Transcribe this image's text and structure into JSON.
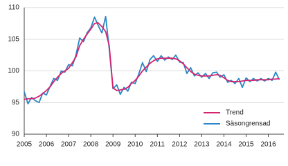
{
  "chart_data": {
    "type": "line",
    "x": [
      2005,
      2005.17,
      2005.33,
      2005.5,
      2005.67,
      2005.83,
      2006,
      2006.17,
      2006.33,
      2006.5,
      2006.67,
      2006.83,
      2007,
      2007.17,
      2007.33,
      2007.5,
      2007.67,
      2007.83,
      2008,
      2008.17,
      2008.33,
      2008.5,
      2008.67,
      2008.83,
      2009,
      2009.17,
      2009.33,
      2009.5,
      2009.67,
      2009.83,
      2010,
      2010.17,
      2010.33,
      2010.5,
      2010.67,
      2010.83,
      2011,
      2011.17,
      2011.33,
      2011.5,
      2011.67,
      2011.83,
      2012,
      2012.17,
      2012.33,
      2012.5,
      2012.67,
      2012.83,
      2013,
      2013.17,
      2013.33,
      2013.5,
      2013.67,
      2013.83,
      2014,
      2014.17,
      2014.33,
      2014.5,
      2014.67,
      2014.83,
      2015,
      2015.17,
      2015.33,
      2015.5,
      2015.67,
      2015.83,
      2016,
      2016.17,
      2016.33,
      2016.5
    ],
    "series": [
      {
        "name": "Trend",
        "color": "#d6246e",
        "values": [
          95.5,
          95.6,
          95.6,
          95.7,
          96.0,
          96.4,
          96.9,
          97.5,
          98.3,
          99.0,
          99.6,
          100.0,
          100.4,
          101.3,
          102.2,
          104.0,
          105.0,
          105.8,
          106.6,
          107.5,
          107.6,
          107.0,
          106.2,
          104.0,
          97.3,
          96.9,
          97.0,
          97.1,
          97.4,
          98.0,
          98.5,
          99.2,
          100.0,
          100.6,
          101.2,
          101.6,
          101.9,
          102.0,
          102.0,
          102.0,
          102.0,
          101.9,
          101.6,
          101.1,
          100.5,
          99.9,
          99.5,
          99.3,
          99.2,
          99.2,
          99.2,
          99.3,
          99.4,
          99.3,
          98.9,
          98.5,
          98.3,
          98.3,
          98.3,
          98.4,
          98.5,
          98.5,
          98.5,
          98.6,
          98.6,
          98.6,
          98.6,
          98.7,
          98.7,
          98.8
        ]
      },
      {
        "name": "Säsongrensad",
        "color": "#2a86c4",
        "values": [
          96.7,
          94.8,
          95.8,
          95.3,
          95.0,
          96.5,
          96.2,
          97.6,
          98.8,
          98.5,
          100.0,
          99.8,
          101.0,
          100.8,
          102.5,
          105.2,
          104.6,
          106.0,
          106.8,
          108.5,
          107.2,
          106.0,
          108.6,
          103.5,
          97.2,
          97.8,
          96.3,
          97.4,
          96.8,
          98.2,
          98.0,
          99.6,
          101.3,
          99.9,
          101.8,
          102.4,
          101.5,
          102.4,
          101.7,
          102.2,
          101.8,
          102.5,
          101.4,
          101.3,
          99.6,
          100.5,
          99.2,
          99.7,
          99.0,
          99.6,
          98.8,
          99.7,
          99.8,
          99.0,
          99.4,
          98.2,
          98.5,
          98.0,
          98.8,
          97.4,
          98.9,
          98.3,
          98.8,
          98.4,
          98.8,
          98.4,
          98.8,
          98.5,
          99.8,
          98.6
        ]
      }
    ],
    "xlim": [
      2005,
      2016.7
    ],
    "xticks": [
      2005,
      2006,
      2007,
      2008,
      2009,
      2010,
      2011,
      2012,
      2013,
      2014,
      2015,
      2016
    ],
    "ylim": [
      90,
      110
    ],
    "yticks": [
      90,
      95,
      100,
      105,
      110
    ],
    "grid": true,
    "legend": "lower-right"
  }
}
